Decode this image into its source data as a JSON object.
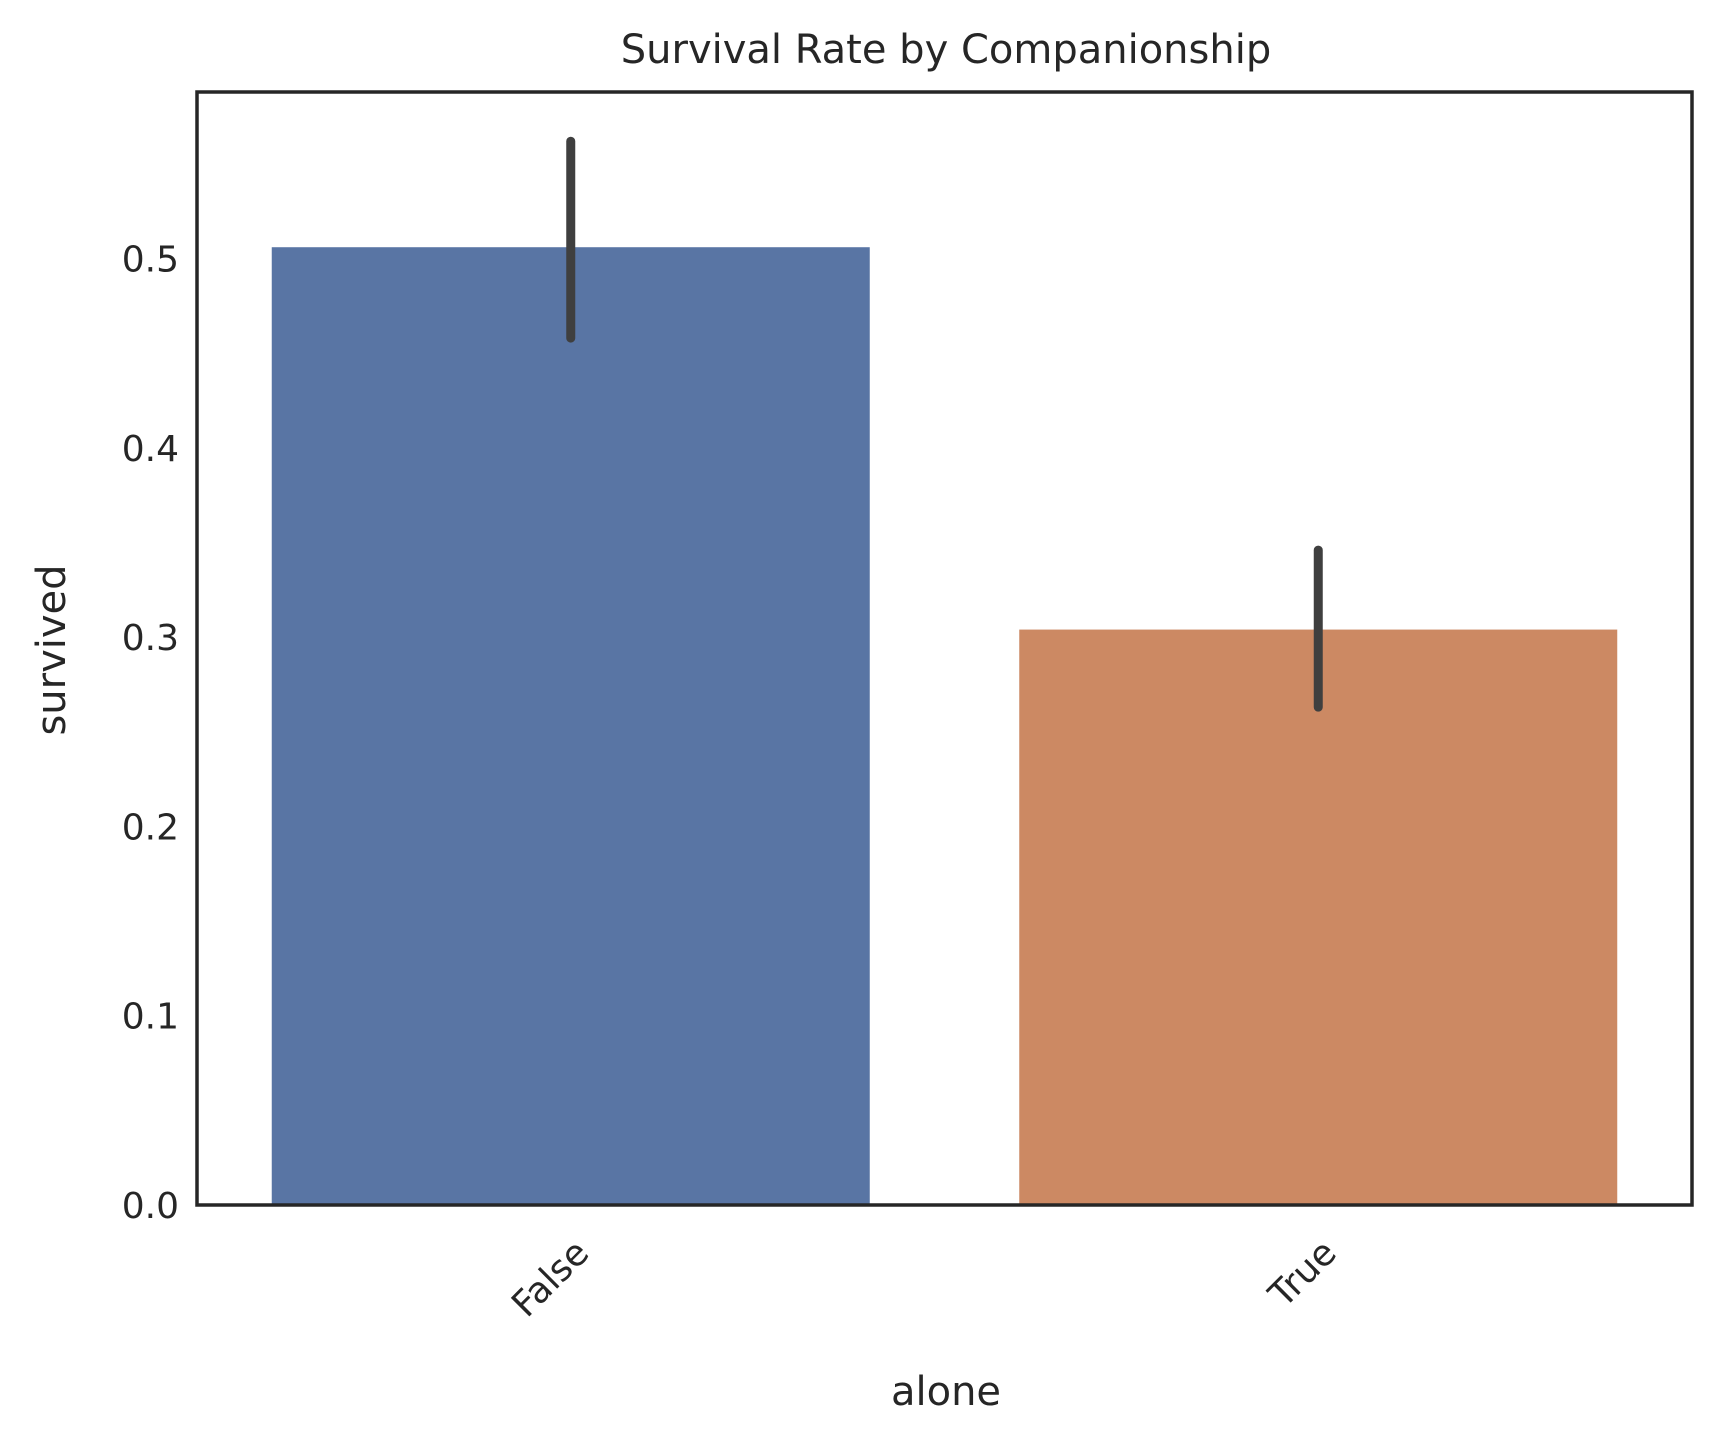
{
  "chart_data": {
    "type": "bar",
    "title": "Survival Rate by Companionship",
    "xlabel": "alone",
    "ylabel": "survived",
    "categories": [
      "False",
      "True"
    ],
    "values": [
      0.506,
      0.304
    ],
    "error_bars": [
      {
        "low": 0.458,
        "high": 0.562
      },
      {
        "low": 0.263,
        "high": 0.346
      }
    ],
    "colors": [
      "#5975a4",
      "#cc8963"
    ],
    "ylim": [
      0,
      0.588
    ],
    "yticks": [
      0.0,
      0.1,
      0.2,
      0.3,
      0.4,
      0.5
    ],
    "ytick_labels": [
      "0.0",
      "0.1",
      "0.2",
      "0.3",
      "0.4",
      "0.5"
    ],
    "xtick_rotation": -45,
    "grid": false,
    "legend": "none"
  }
}
